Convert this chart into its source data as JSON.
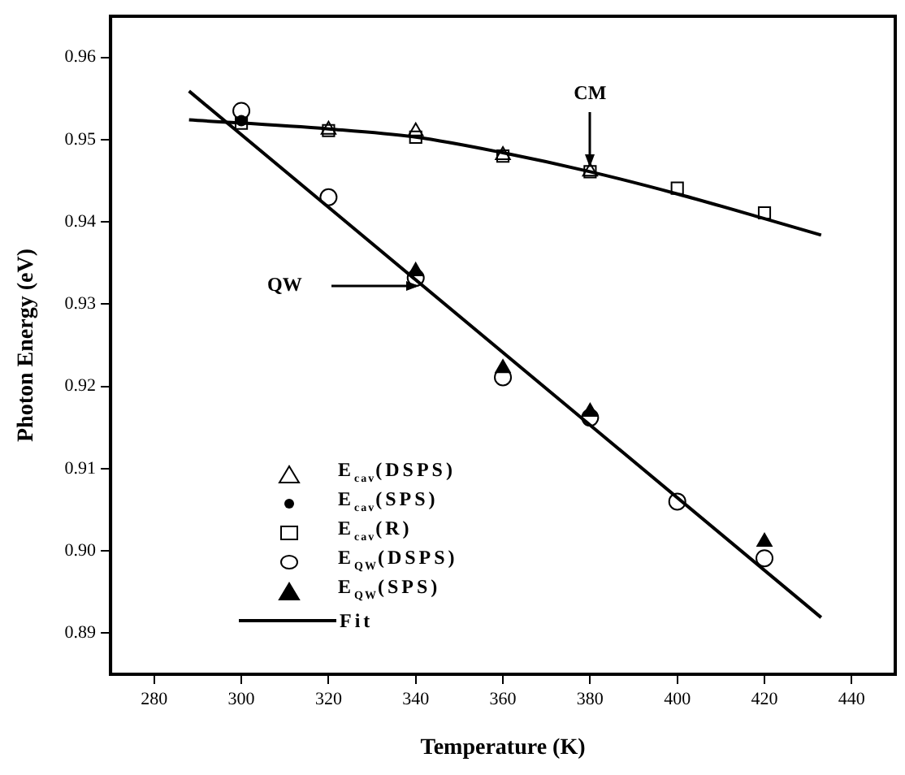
{
  "chart_data": {
    "type": "scatter",
    "xlabel": "Temperature (K)",
    "ylabel": "Photon Energy (eV)",
    "xlim": [
      270,
      450
    ],
    "xticks": [
      280,
      300,
      320,
      340,
      360,
      380,
      400,
      420,
      440
    ],
    "ylim": [
      0.885,
      0.965
    ],
    "yticks": [
      0.89,
      {
        "value": 0.9,
        "label": "0.90"
      },
      0.91,
      0.92,
      0.93,
      0.94,
      0.95,
      0.96
    ],
    "grid": false,
    "legend": "bottom left",
    "series": [
      {
        "name": "E$_{cav}$(DSPS)",
        "color": "#000000",
        "marker": "triangle",
        "x": [
          320,
          340,
          360,
          380
        ],
        "values": [
          0.9512,
          0.951,
          0.9481,
          0.9461
        ]
      },
      {
        "name": "E$_{cav}$(SPS)",
        "color": "#000000",
        "marker": "circle",
        "x": [
          300
        ],
        "values": [
          0.9523
        ]
      },
      {
        "name": "E$_{cav}$(R)",
        "color": "#000000",
        "marker": "square",
        "x": [
          300,
          320,
          340,
          360,
          380,
          400,
          420
        ],
        "values": [
          0.952,
          0.9511,
          0.9503,
          0.948,
          0.9461,
          0.9441,
          0.9411
        ]
      },
      {
        "name": "E$_{QW}$(DSPS)",
        "color": "#000000",
        "marker": "circle",
        "x": [
          300,
          320,
          340,
          360,
          380,
          400,
          420
        ],
        "values": [
          0.9535,
          0.943,
          0.9332,
          0.9211,
          0.9162,
          0.906,
          0.8991
        ]
      },
      {
        "name": "E$_{QW}$(SPS)",
        "color": "#000000",
        "marker": "triangle",
        "x": [
          340,
          360,
          380,
          420
        ],
        "values": [
          0.934,
          0.9222,
          0.9169,
          0.9011
        ]
      },
      {
        "name": "Fit",
        "type": "line",
        "color": "#000000",
        "marker": "none",
        "line_style": "solid",
        "x": [
          288,
          320,
          340,
          360,
          380,
          400,
          420,
          433
        ],
        "values": [
          0.9524,
          0.9513,
          0.9503,
          0.9484,
          0.9461,
          0.9434,
          0.9404,
          0.9384
        ]
      },
      {
        "type": "line",
        "color": "#000000",
        "marker": "none",
        "line_style": "solid",
        "x": [
          288,
          433
        ],
        "values": [
          0.9559,
          0.8919
        ]
      }
    ],
    "annotations": [
      {
        "text": "CM",
        "x": 380,
        "y": 0.9461
      },
      "QW"
    ]
  }
}
